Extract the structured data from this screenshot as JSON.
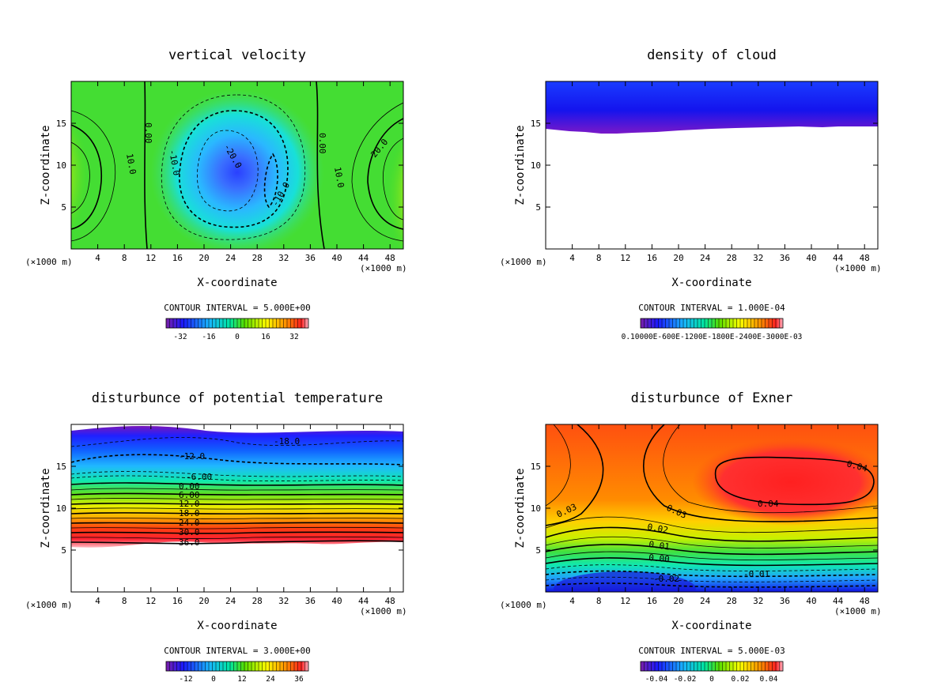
{
  "chart_data": [
    {
      "type": "contour",
      "title": "vertical velocity",
      "xlabel": "X-coordinate",
      "ylabel": "Z-coordinate",
      "x_unit": "(×1000 m)",
      "xticks": [
        4,
        8,
        12,
        16,
        20,
        24,
        28,
        32,
        36,
        40,
        44,
        48
      ],
      "yticks": [
        5,
        10,
        15
      ],
      "xlim": [
        0,
        50
      ],
      "ylim": [
        0,
        20
      ],
      "contour_interval": "CONTOUR INTERVAL = 5.000E+00",
      "colorbar_ticks": [
        "-32",
        "-16",
        "0",
        "16",
        "32"
      ],
      "contour_labels": [
        {
          "text": "10.0",
          "x": 8,
          "z": 11
        },
        {
          "text": "0.00",
          "x": 11.5,
          "z": 16
        },
        {
          "text": "-10.0",
          "x": 15,
          "z": 10.5
        },
        {
          "text": "-20.0",
          "x": 24,
          "z": 11.5
        },
        {
          "text": "-10.0",
          "x": 32,
          "z": 6
        },
        {
          "text": "0.00",
          "x": 38.5,
          "z": 13
        },
        {
          "text": "10.0",
          "x": 41,
          "z": 9
        },
        {
          "text": "20.0",
          "x": 47,
          "z": 12
        }
      ]
    },
    {
      "type": "contour",
      "title": "density of cloud",
      "xlabel": "X-coordinate",
      "ylabel": "Z-coordinate",
      "x_unit": "(×1000 m)",
      "xticks": [
        4,
        8,
        12,
        16,
        20,
        24,
        28,
        32,
        36,
        40,
        44,
        48
      ],
      "yticks": [
        5,
        10,
        15
      ],
      "xlim": [
        0,
        50
      ],
      "ylim": [
        0,
        20
      ],
      "contour_interval": "CONTOUR INTERVAL = 1.000E-04",
      "colorbar_ticks": [
        "0.10000E-600E-1200E-1800E-2400E-3000E-03"
      ],
      "contour_labels": []
    },
    {
      "type": "contour",
      "title": "disturbunce of potential temperature",
      "xlabel": "X-coordinate",
      "ylabel": "Z-coordinate",
      "x_unit": "(×1000 m)",
      "xticks": [
        4,
        8,
        12,
        16,
        20,
        24,
        28,
        32,
        36,
        40,
        44,
        48
      ],
      "yticks": [
        5,
        10,
        15
      ],
      "xlim": [
        0,
        50
      ],
      "ylim": [
        0,
        20
      ],
      "contour_interval": "CONTOUR INTERVAL = 3.000E+00",
      "colorbar_ticks": [
        "-12",
        "0",
        "12",
        "24",
        "36"
      ],
      "contour_labels": [
        {
          "text": "-18.0",
          "x": 32,
          "z": 18.2
        },
        {
          "text": "-12.0",
          "x": 17,
          "z": 15.7
        },
        {
          "text": "-6.00",
          "x": 18.5,
          "z": 13.5
        },
        {
          "text": "0.00",
          "x": 17.5,
          "z": 12.4
        },
        {
          "text": "6.00",
          "x": 17.5,
          "z": 11.4
        },
        {
          "text": "12.0",
          "x": 17.5,
          "z": 10.3
        },
        {
          "text": "18.0",
          "x": 17.5,
          "z": 9.2
        },
        {
          "text": "24.0",
          "x": 17.5,
          "z": 8.0
        },
        {
          "text": "30.0",
          "x": 17.5,
          "z": 6.9
        },
        {
          "text": "36.0",
          "x": 17.5,
          "z": 5.8
        }
      ]
    },
    {
      "type": "contour",
      "title": "disturbunce of Exner",
      "xlabel": "X-coordinate",
      "ylabel": "Z-coordinate",
      "x_unit": "(×1000 m)",
      "xticks": [
        4,
        8,
        12,
        16,
        20,
        24,
        28,
        32,
        36,
        40,
        44,
        48
      ],
      "yticks": [
        5,
        10,
        15
      ],
      "xlim": [
        0,
        50
      ],
      "ylim": [
        0,
        20
      ],
      "contour_interval": "CONTOUR INTERVAL = 5.000E-03",
      "colorbar_ticks": [
        "-0.04",
        "-0.02",
        "0",
        "0.02",
        "0.04"
      ],
      "contour_labels": [
        {
          "text": "0.04",
          "x": 47,
          "z": 15.5
        },
        {
          "text": "0.04",
          "x": 33.5,
          "z": 10.8
        },
        {
          "text": "0.03",
          "x": 3,
          "z": 9.6
        },
        {
          "text": "0.03",
          "x": 19.5,
          "z": 10
        },
        {
          "text": "0.02",
          "x": 17,
          "z": 7.5
        },
        {
          "text": "0.01",
          "x": 17,
          "z": 5.8
        },
        {
          "text": "0.00",
          "x": 17,
          "z": 4.1
        },
        {
          "text": "-0.01",
          "x": 32,
          "z": 2.1
        },
        {
          "text": "-0.02",
          "x": 18,
          "z": 1.3
        }
      ]
    }
  ]
}
